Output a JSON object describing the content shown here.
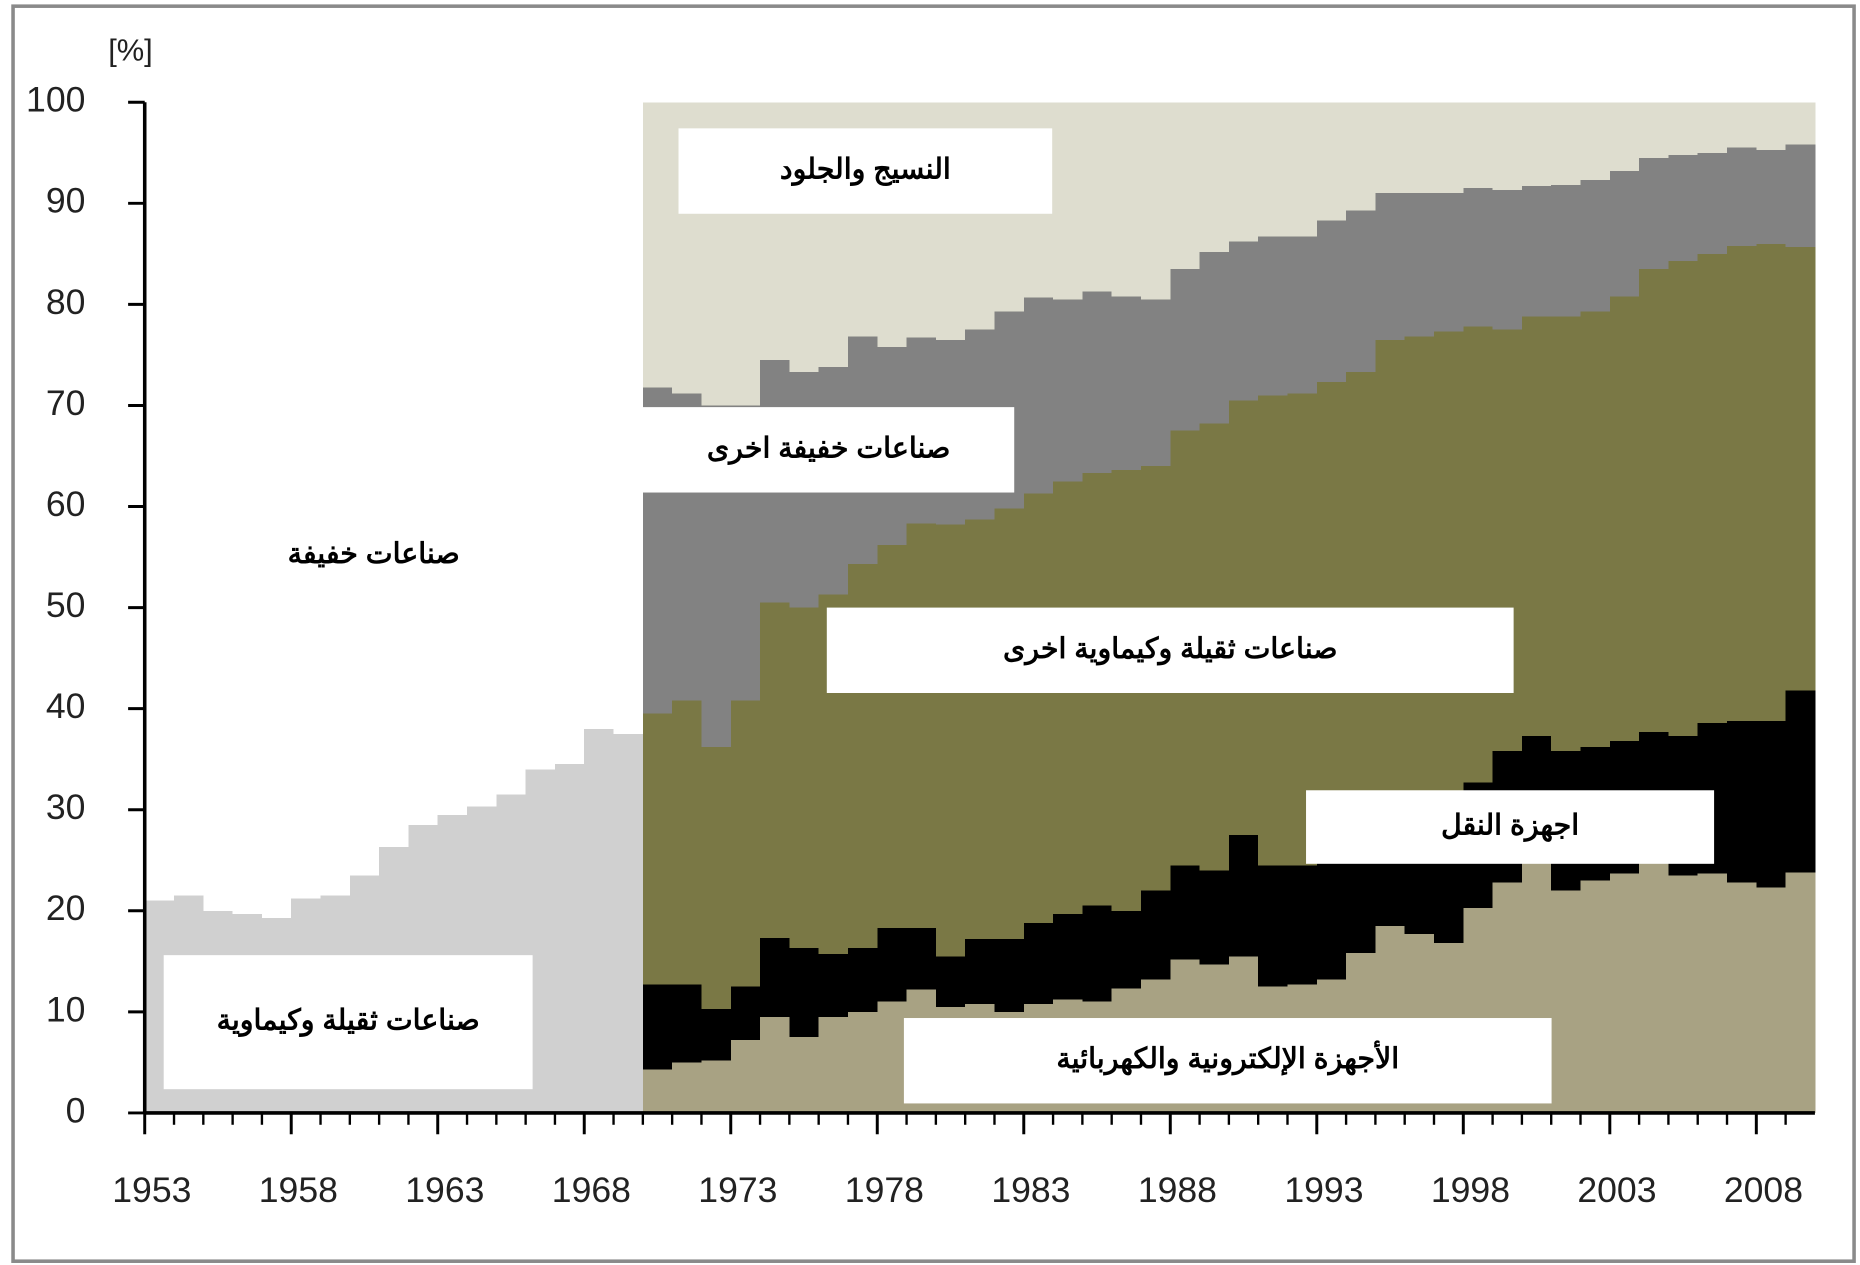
{
  "chart_data": {
    "type": "stacked_step_area",
    "y_label": "[%]",
    "x": [
      1953,
      1954,
      1955,
      1956,
      1957,
      1958,
      1959,
      1960,
      1961,
      1962,
      1963,
      1964,
      1965,
      1966,
      1967,
      1968,
      1969,
      1970,
      1971,
      1972,
      1973,
      1974,
      1975,
      1976,
      1977,
      1978,
      1979,
      1980,
      1981,
      1982,
      1983,
      1984,
      1985,
      1986,
      1987,
      1988,
      1989,
      1990,
      1991,
      1992,
      1993,
      1994,
      1995,
      1996,
      1997,
      1998,
      1999,
      2000,
      2001,
      2002,
      2003,
      2004,
      2005,
      2006,
      2007,
      2008,
      2009
    ],
    "xlim": [
      1953,
      2010
    ],
    "xticks": [
      1953,
      1958,
      1963,
      1968,
      1973,
      1978,
      1983,
      1988,
      1993,
      1998,
      2003,
      2008
    ],
    "ylim": [
      0,
      100
    ],
    "yticks": [
      0,
      10,
      20,
      30,
      40,
      50,
      60,
      70,
      80,
      90,
      100
    ],
    "series": [
      {
        "name": "صناعات ثقيلة وكيماوية",
        "color": "#d0d0d0",
        "values": [
          21,
          21.5,
          20,
          19.7,
          19.3,
          21.2,
          21.5,
          23.5,
          26.3,
          28.5,
          29.5,
          30.3,
          31.5,
          34,
          34.5,
          38,
          37.5,
          null,
          null,
          null,
          null,
          null,
          null,
          null,
          null,
          null,
          null,
          null,
          null,
          null,
          null,
          null,
          null,
          null,
          null,
          null,
          null,
          null,
          null,
          null,
          null,
          null,
          null,
          null,
          null,
          null,
          null,
          null,
          null,
          null,
          null,
          null,
          null,
          null,
          null,
          null,
          null
        ]
      },
      {
        "name": "صناعات خفيفة",
        "color": "#ffffff",
        "values": [
          79,
          78.5,
          80,
          80.3,
          80.7,
          78.8,
          78.5,
          76.5,
          73.7,
          71.5,
          70.5,
          69.7,
          68.5,
          66,
          65.5,
          62,
          62.5,
          null,
          null,
          null,
          null,
          null,
          null,
          null,
          null,
          null,
          null,
          null,
          null,
          null,
          null,
          null,
          null,
          null,
          null,
          null,
          null,
          null,
          null,
          null,
          null,
          null,
          null,
          null,
          null,
          null,
          null,
          null,
          null,
          null,
          null,
          null,
          null,
          null,
          null,
          null,
          null
        ]
      },
      {
        "name": "الأجهزة الإلكترونية والكهربائية",
        "color": "#a8a283",
        "values": [
          null,
          null,
          null,
          null,
          null,
          null,
          null,
          null,
          null,
          null,
          null,
          null,
          null,
          null,
          null,
          null,
          null,
          4.3,
          5,
          5.2,
          7.2,
          9.5,
          7.5,
          9.5,
          10,
          11,
          12.2,
          10.5,
          10.8,
          10,
          10.8,
          11.2,
          11,
          12.3,
          13.2,
          15.2,
          14.7,
          15.5,
          12.5,
          12.7,
          13.2,
          15.8,
          18.5,
          17.7,
          16.8,
          20.3,
          22.8,
          24.8,
          22,
          23,
          23.7,
          24.8,
          23.5,
          23.7,
          22.8,
          22.3,
          23.8
        ]
      },
      {
        "name": "اجهزة النقل",
        "color": "#000000",
        "values": [
          null,
          null,
          null,
          null,
          null,
          null,
          null,
          null,
          null,
          null,
          null,
          null,
          null,
          null,
          null,
          null,
          null,
          8.4,
          7.7,
          5.1,
          5.3,
          7.8,
          8.8,
          6.2,
          6.3,
          7.3,
          6.1,
          5,
          6.4,
          7.2,
          8,
          8.5,
          9.5,
          7.7,
          8.8,
          9.3,
          9.3,
          12,
          12,
          11.8,
          11.6,
          9,
          6.3,
          7.1,
          10.7,
          12.4,
          13,
          12.5,
          13.8,
          13.2,
          13.1,
          12.9,
          13.8,
          14.9,
          16,
          16.5,
          18
        ]
      },
      {
        "name": "صناعات ثقيلة وكيماوية اخرى",
        "color": "#7a7845",
        "values": [
          null,
          null,
          null,
          null,
          null,
          null,
          null,
          null,
          null,
          null,
          null,
          null,
          null,
          null,
          null,
          null,
          null,
          26.8,
          28.1,
          25.9,
          28.3,
          33.2,
          33.7,
          35.6,
          38,
          37.9,
          40,
          42.7,
          41.5,
          42.6,
          42.5,
          42.8,
          42.8,
          43.6,
          42,
          43,
          44.2,
          43,
          46.5,
          46.7,
          47.5,
          48.5,
          51.7,
          52,
          49.8,
          45.1,
          41.7,
          41.5,
          43,
          43.1,
          44,
          45.8,
          47,
          46.4,
          47,
          47.2,
          43.9
        ]
      },
      {
        "name": "صناعات خفيفة اخرى",
        "color": "#828282",
        "values": [
          null,
          null,
          null,
          null,
          null,
          null,
          null,
          null,
          null,
          null,
          null,
          null,
          null,
          null,
          null,
          null,
          null,
          32.3,
          30.4,
          33.8,
          29.2,
          24,
          23.3,
          22.5,
          22.5,
          19.6,
          18.4,
          18.3,
          18.8,
          19.5,
          19.4,
          18,
          18,
          17.2,
          16.5,
          16,
          17,
          15.7,
          15.7,
          15.5,
          16,
          16,
          14.5,
          14.2,
          13.7,
          13.7,
          13.8,
          12.9,
          13,
          13,
          12.4,
          11,
          10.5,
          10,
          9.7,
          9.3,
          10.1
        ]
      },
      {
        "name": "النسيج والجلود",
        "color": "#deddcf",
        "values": [
          null,
          null,
          null,
          null,
          null,
          null,
          null,
          null,
          null,
          null,
          null,
          null,
          null,
          null,
          null,
          null,
          null,
          28.2,
          28.8,
          30,
          30,
          25.5,
          26.7,
          26.2,
          23.2,
          24.2,
          23.3,
          23.5,
          22.5,
          20.7,
          19.3,
          19.5,
          18.7,
          19.2,
          19.5,
          16.5,
          14.8,
          13.8,
          13.3,
          13.3,
          11.7,
          10.7,
          9,
          9,
          9,
          8.5,
          8.7,
          8.3,
          8.2,
          7.7,
          6.8,
          5.5,
          5.2,
          5,
          4.5,
          4.7,
          4.2
        ]
      }
    ]
  }
}
